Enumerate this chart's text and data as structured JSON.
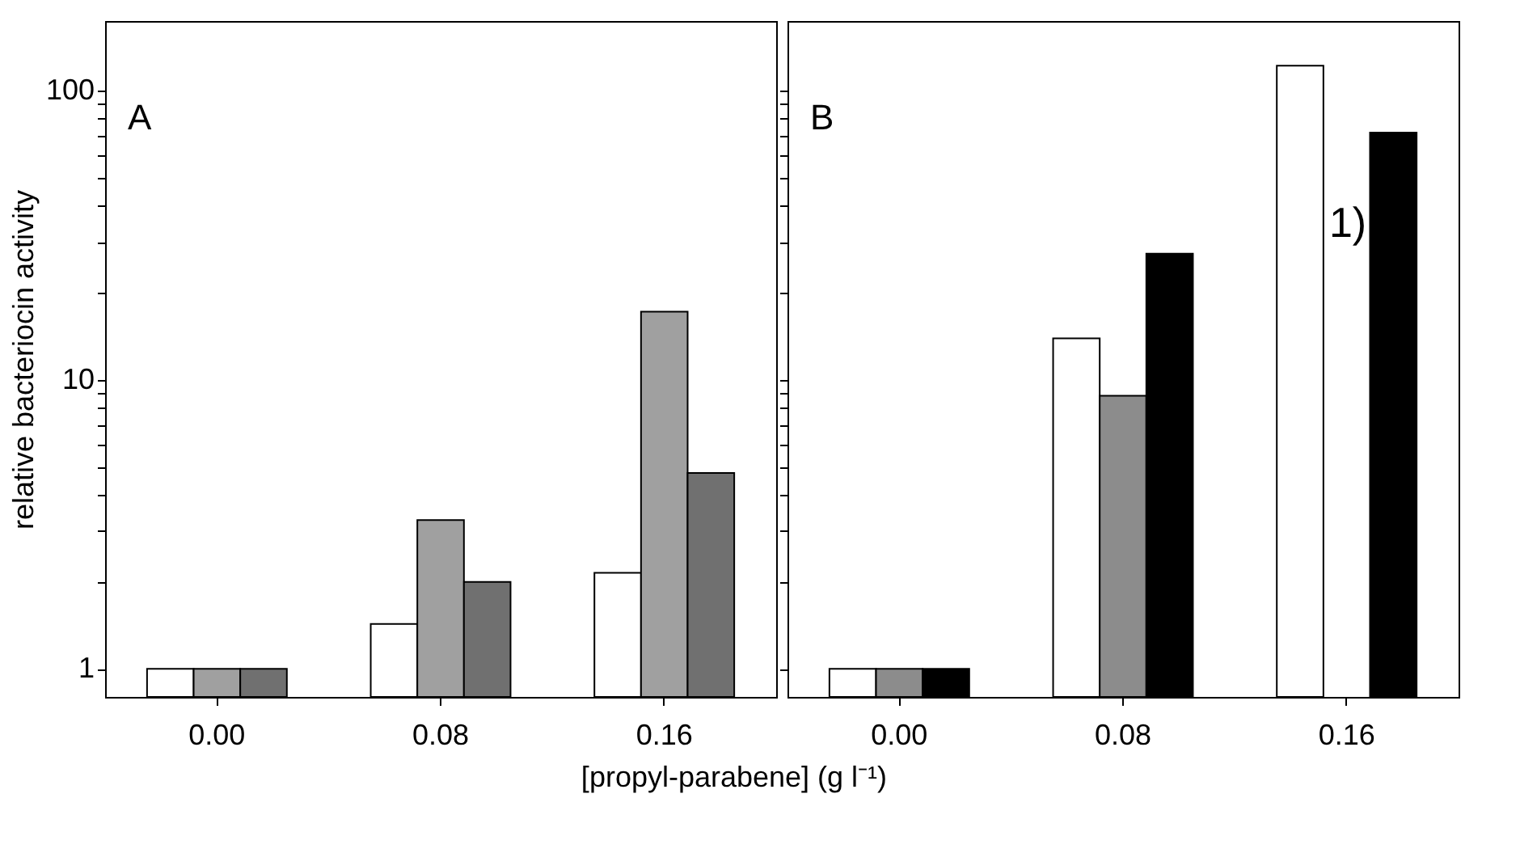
{
  "chart_data": [
    {
      "type": "bar",
      "title": "A",
      "ylabel": "relative bacteriocin activity",
      "xlabel": "[propyl-parabene] (g l⁻¹)",
      "categories": [
        "0.00",
        "0.08",
        "0.16"
      ],
      "log": true,
      "ylim": [
        0.8,
        174
      ],
      "yticks": [
        1,
        {
          "value": 2,
          "label": null
        },
        {
          "value": 3,
          "label": null
        },
        {
          "value": 4,
          "label": null
        },
        {
          "value": 5,
          "label": null
        },
        {
          "value": 6,
          "label": null
        },
        {
          "value": 7,
          "label": null
        },
        {
          "value": 8,
          "label": null
        },
        {
          "value": 9,
          "label": null
        },
        10,
        {
          "value": 20,
          "label": null
        },
        {
          "value": 30,
          "label": null
        },
        {
          "value": 40,
          "label": null
        },
        {
          "value": 50,
          "label": null
        },
        {
          "value": 60,
          "label": null
        },
        {
          "value": 70,
          "label": null
        },
        {
          "value": 80,
          "label": null
        },
        {
          "value": 90,
          "label": null
        },
        100
      ],
      "grid": false,
      "series": [
        {
          "color": "#ffffff",
          "values": [
            1,
            1.43,
            2.15
          ]
        },
        {
          "color": "#a0a0a0",
          "values": [
            1,
            3.27,
            17.2
          ]
        },
        {
          "color": "#707070",
          "values": [
            1,
            2.0,
            4.76
          ]
        }
      ]
    },
    {
      "type": "bar",
      "title": "B",
      "categories": [
        "0.00",
        "0.08",
        "0.16"
      ],
      "log": true,
      "ylim": [
        0.8,
        174
      ],
      "yticks": [
        1,
        {
          "value": 2,
          "label": null
        },
        {
          "value": 3,
          "label": null
        },
        {
          "value": 4,
          "label": null
        },
        {
          "value": 5,
          "label": null
        },
        {
          "value": 6,
          "label": null
        },
        {
          "value": 7,
          "label": null
        },
        {
          "value": 8,
          "label": null
        },
        {
          "value": 9,
          "label": null
        },
        10,
        {
          "value": 20,
          "label": null
        },
        {
          "value": 30,
          "label": null
        },
        {
          "value": 40,
          "label": null
        },
        {
          "value": 50,
          "label": null
        },
        {
          "value": 60,
          "label": null
        },
        {
          "value": 70,
          "label": null
        },
        {
          "value": 80,
          "label": null
        },
        {
          "value": 90,
          "label": null
        },
        100
      ],
      "tick_labels": "x",
      "grid": false,
      "annotations": [
        "1)"
      ],
      "series": [
        {
          "color": "#ffffff",
          "values": [
            1,
            13.9,
            122
          ]
        },
        {
          "color": "#8c8c8c",
          "values": [
            1,
            8.8,
            null
          ]
        },
        {
          "color": "#000000",
          "values": [
            1,
            27.3,
            71.6
          ]
        }
      ]
    }
  ]
}
